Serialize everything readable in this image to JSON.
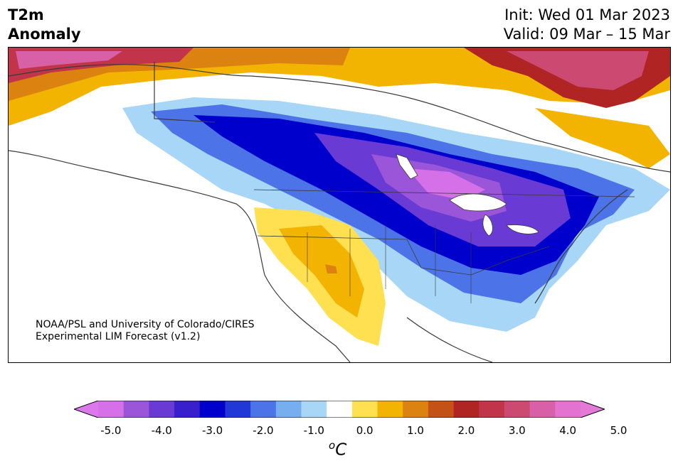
{
  "title": {
    "line1": "T2m",
    "line2": "Anomaly"
  },
  "dates": {
    "init": "Init: Wed 01 Mar 2023",
    "valid": "Valid: 09 Mar – 15 Mar"
  },
  "credit": {
    "line1": "NOAA/PSL and University of Colorado/CIRES",
    "line2": "Experimental LIM Forecast (v1.2)"
  },
  "colorbar": {
    "units": "oC",
    "units_sup": "o",
    "units_main": "C",
    "ticks": [
      "-5.0",
      "-4.0",
      "-3.0",
      "-2.0",
      "-1.0",
      "0.0",
      "1.0",
      "2.0",
      "3.0",
      "4.0",
      "5.0"
    ],
    "colors": [
      "#d670e8",
      "#9a55d8",
      "#6a3ad4",
      "#3a1fcc",
      "#0000cc",
      "#2238d6",
      "#4c74e8",
      "#76aef0",
      "#a8d6f6",
      "#ffffff",
      "#ffe050",
      "#f2b400",
      "#dc8210",
      "#c45216",
      "#b02424",
      "#c2344a",
      "#cc4a72",
      "#d860a6",
      "#e472d0"
    ],
    "under_color": "#dc78ec",
    "over_color": "#e47ad8"
  }
}
